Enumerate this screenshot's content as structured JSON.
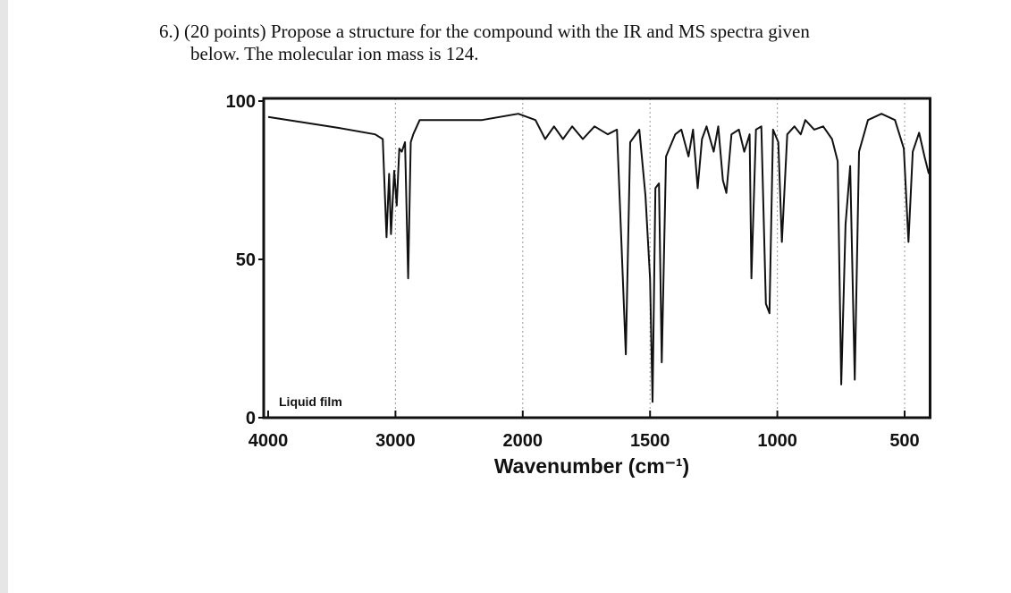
{
  "question": [
    "6.) (20 points) Propose a structure for the compound with the IR and MS spectra given",
    "below. The molecular ion mass is 124."
  ],
  "chart_data": {
    "type": "line",
    "xlabel": "Wavenumber (cm⁻¹)",
    "annotation": "Liquid film",
    "color": "#111111",
    "xlim": [
      4000,
      400
    ],
    "xticks": [
      4000,
      3000,
      2000,
      1500,
      1000,
      500
    ],
    "ylim": [
      0,
      100
    ],
    "yticks": [
      0,
      50,
      100
    ],
    "x": [
      4000,
      3440,
      3160,
      3100,
      3070,
      3050,
      3035,
      3010,
      2990,
      2970,
      2950,
      2925,
      2900,
      2880,
      2860,
      2810,
      2320,
      2035,
      1950,
      1912,
      1877,
      1842,
      1806,
      1764,
      1718,
      1666,
      1630,
      1595,
      1578,
      1542,
      1518,
      1500,
      1490,
      1479,
      1465,
      1454,
      1437,
      1401,
      1377,
      1349,
      1331,
      1313,
      1296,
      1278,
      1250,
      1232,
      1214,
      1200,
      1180,
      1151,
      1130,
      1109,
      1102,
      1084,
      1063,
      1045,
      1031,
      1017,
      996,
      982,
      961,
      933,
      908,
      890,
      855,
      820,
      785,
      763,
      749,
      732,
      714,
      696,
      679,
      644,
      591,
      538,
      503,
      485,
      468,
      443,
      422,
      405
    ],
    "values": [
      95,
      91.5,
      89.5,
      88,
      57,
      77,
      58,
      78,
      67,
      85,
      84,
      87,
      44,
      87,
      89.5,
      94,
      94,
      96,
      94,
      88,
      92,
      88,
      92,
      88,
      92,
      89.5,
      91,
      20,
      87,
      91,
      70,
      44,
      5,
      72.5,
      74,
      17.5,
      82.5,
      89.5,
      91,
      82.5,
      91,
      72.5,
      88,
      92,
      84,
      92,
      75,
      71,
      89.5,
      91,
      84,
      89.5,
      44,
      91,
      92,
      36,
      33,
      91,
      87,
      55.5,
      89.5,
      92,
      89.5,
      94,
      91,
      92,
      88,
      81,
      10.5,
      61,
      79.5,
      12,
      84,
      94,
      96,
      94,
      85,
      55.5,
      84,
      90,
      82.5,
      77
    ]
  }
}
